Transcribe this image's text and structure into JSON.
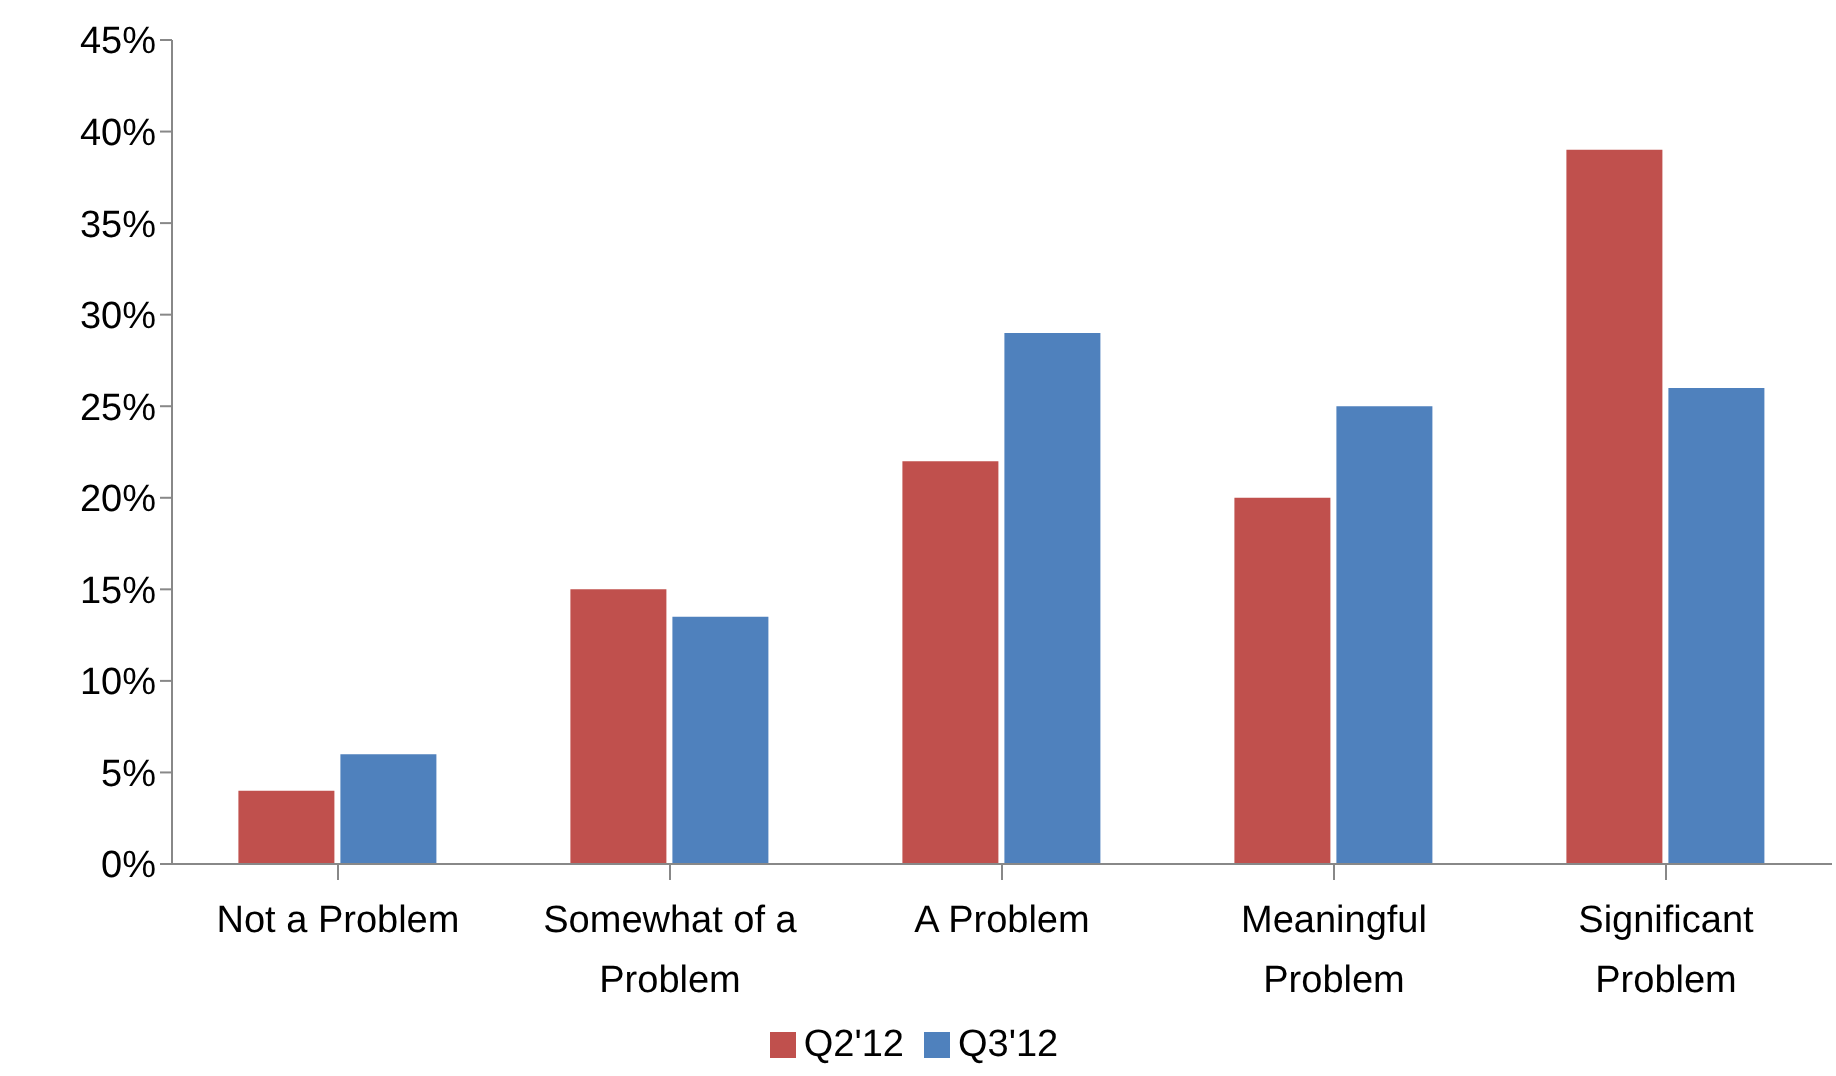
{
  "chart_data": {
    "type": "bar",
    "categories": [
      "Not a Problem",
      "Somewhat of a Problem",
      "A Problem",
      "Meaningful Problem",
      "Significant Problem"
    ],
    "series": [
      {
        "name": "Q2'12",
        "color": "#c0504d",
        "values": [
          4,
          15,
          22,
          20,
          39
        ]
      },
      {
        "name": "Q3'12",
        "color": "#4f81bd",
        "values": [
          6,
          13.5,
          29,
          25,
          26
        ]
      }
    ],
    "ylim": [
      0,
      45
    ],
    "yticks": [
      {
        "value": 0,
        "label": "0%"
      },
      {
        "value": 5,
        "label": "5%"
      },
      {
        "value": 10,
        "label": "10%"
      },
      {
        "value": 15,
        "label": "15%"
      },
      {
        "value": 20,
        "label": "20%"
      },
      {
        "value": 25,
        "label": "25%"
      },
      {
        "value": 30,
        "label": "30%"
      },
      {
        "value": 35,
        "label": "35%"
      },
      {
        "value": 40,
        "label": "40%"
      },
      {
        "value": 45,
        "label": "45%"
      }
    ],
    "grid": false,
    "legend": "bottom"
  }
}
